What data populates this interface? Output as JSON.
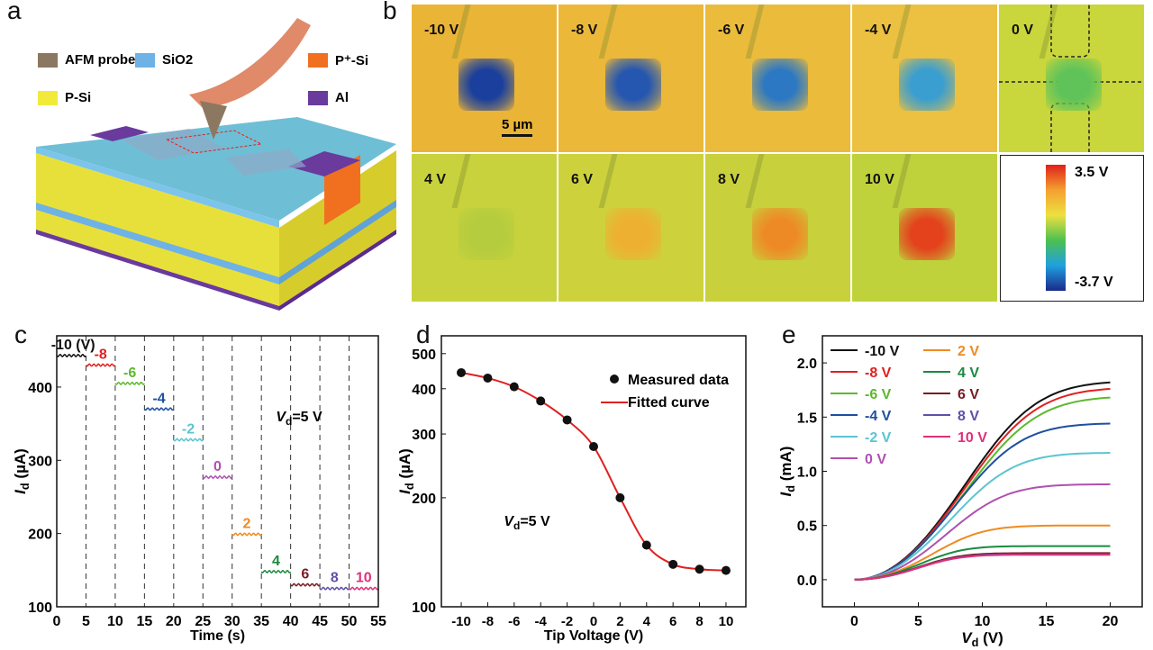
{
  "panel_a": {
    "label": "a",
    "legend": [
      {
        "text": "AFM probe",
        "color": "#8c7760"
      },
      {
        "text": "SiO2",
        "color": "#6fb2e6"
      },
      {
        "text": "P⁺-Si",
        "color": "#f07020"
      },
      {
        "text": "P-Si",
        "color": "#f1ea3a"
      },
      {
        "text": "Al",
        "color": "#6a3a9c"
      }
    ]
  },
  "panel_b": {
    "label": "b",
    "scale_bar": "5 µm",
    "tiles": [
      {
        "v": "-10 V",
        "bg": "#eab437",
        "sq": "#1a3f9c"
      },
      {
        "v": "-8 V",
        "bg": "#ebb83a",
        "sq": "#2556b0"
      },
      {
        "v": "-6 V",
        "bg": "#ebbb3c",
        "sq": "#2d78c2"
      },
      {
        "v": "-4 V",
        "bg": "#ecc040",
        "sq": "#3a9ed0"
      },
      {
        "v": "0 V",
        "bg": "#c9d63c",
        "sq": "#5fc35a"
      },
      {
        "v": "4 V",
        "bg": "#c8d23c",
        "sq": "#b4cc3e"
      },
      {
        "v": "6 V",
        "bg": "#cdd23c",
        "sq": "#eeb030"
      },
      {
        "v": "8 V",
        "bg": "#c8d03c",
        "sq": "#ee8a25"
      },
      {
        "v": "10 V",
        "bg": "#bfd23c",
        "sq": "#e4421c"
      }
    ],
    "colorbar": {
      "max": "3.5 V",
      "min": "-3.7 V"
    }
  },
  "chart_data": [
    {
      "panel": "c",
      "type": "line",
      "xlabel": "Time (s)",
      "ylabel": "Id (µA)",
      "ylabel_main": "I",
      "ylabel_sub": "d",
      "ylabel_unit": " (µA)",
      "xlim": [
        0,
        55
      ],
      "ylim": [
        100,
        470
      ],
      "xticks": [
        0,
        5,
        10,
        15,
        20,
        25,
        30,
        35,
        40,
        45,
        50,
        55
      ],
      "yticks": [
        100,
        200,
        300,
        400
      ],
      "annotation": {
        "v": "V",
        "sub": "d",
        "rest": "=5 V"
      },
      "segments": [
        {
          "label": "-10 (V)",
          "t": [
            0,
            5
          ],
          "value": 443,
          "color": "#111111"
        },
        {
          "label": "-8",
          "t": [
            5,
            10
          ],
          "value": 430,
          "color": "#e02020"
        },
        {
          "label": "-6",
          "t": [
            10,
            15
          ],
          "value": 405,
          "color": "#5cb82e"
        },
        {
          "label": "-4",
          "t": [
            15,
            20
          ],
          "value": 370,
          "color": "#1f4fa0"
        },
        {
          "label": "-2",
          "t": [
            20,
            25
          ],
          "value": 328,
          "color": "#5cc4d0"
        },
        {
          "label": "0",
          "t": [
            25,
            30
          ],
          "value": 277,
          "color": "#b050b0"
        },
        {
          "label": "2",
          "t": [
            30,
            35
          ],
          "value": 199,
          "color": "#f08a20"
        },
        {
          "label": "4",
          "t": [
            35,
            40
          ],
          "value": 148,
          "color": "#1a8a40"
        },
        {
          "label": "6",
          "t": [
            40,
            45
          ],
          "value": 130,
          "color": "#7a1a20"
        },
        {
          "label": "8",
          "t": [
            45,
            50
          ],
          "value": 125,
          "color": "#6050a8"
        },
        {
          "label": "10",
          "t": [
            50,
            55
          ],
          "value": 125,
          "color": "#e0307a"
        }
      ]
    },
    {
      "panel": "d",
      "type": "scatter",
      "yscale": "log",
      "xlabel": "Tip Voltage (V)",
      "ylabel_main": "I",
      "ylabel_sub": "d",
      "ylabel_unit": " (µA)",
      "xlim": [
        -11.5,
        11.5
      ],
      "ylim": [
        100,
        560
      ],
      "xticks": [
        -10,
        -8,
        -6,
        -4,
        -2,
        0,
        2,
        4,
        6,
        8,
        10
      ],
      "yticks": [
        100,
        200,
        300,
        400,
        500
      ],
      "legend": {
        "measured": "Measured data",
        "fitted": "Fitted curve"
      },
      "annotation": {
        "v": "V",
        "sub": "d",
        "rest": "=5 V"
      },
      "x": [
        -10,
        -8,
        -6,
        -4,
        -2,
        0,
        2,
        4,
        6,
        8,
        10
      ],
      "y": [
        443,
        428,
        405,
        370,
        328,
        277,
        200,
        148,
        131,
        127,
        126
      ],
      "fit_color": "#e02020"
    },
    {
      "panel": "e",
      "type": "line",
      "xlabel_main": "V",
      "xlabel_sub": "d",
      "xlabel_unit": " (V)",
      "ylabel_main": "I",
      "ylabel_sub": "d",
      "ylabel_unit": " (mA)",
      "xlim": [
        -2.5,
        22.5
      ],
      "ylim": [
        -0.25,
        2.25
      ],
      "xticks": [
        0,
        5,
        10,
        15,
        20
      ],
      "yticks": [
        "0.0",
        "0.5",
        "1.0",
        "1.5",
        "2.0"
      ],
      "series": [
        {
          "name": "-10 V",
          "i_at_20": 1.82,
          "knee_v": 12,
          "color": "#111111"
        },
        {
          "name": "-8 V",
          "i_at_20": 1.76,
          "knee_v": 12,
          "color": "#e02020"
        },
        {
          "name": "-6 V",
          "i_at_20": 1.68,
          "knee_v": 12,
          "color": "#5cb82e"
        },
        {
          "name": "-4 V",
          "i_at_20": 1.44,
          "knee_v": 11,
          "color": "#1f4fa0"
        },
        {
          "name": "-2 V",
          "i_at_20": 1.17,
          "knee_v": 10.5,
          "color": "#5cc4d0"
        },
        {
          "name": "0 V",
          "i_at_20": 0.88,
          "knee_v": 10,
          "color": "#b050b0"
        },
        {
          "name": "2 V",
          "i_at_20": 0.5,
          "knee_v": 8.5,
          "color": "#f08a20"
        },
        {
          "name": "4 V",
          "i_at_20": 0.31,
          "knee_v": 7.2,
          "color": "#1a8a40"
        },
        {
          "name": "6 V",
          "i_at_20": 0.245,
          "knee_v": 7,
          "color": "#7a1a20"
        },
        {
          "name": "8 V",
          "i_at_20": 0.235,
          "knee_v": 7,
          "color": "#6050a8"
        },
        {
          "name": "10 V",
          "i_at_20": 0.23,
          "knee_v": 7,
          "color": "#e0307a"
        }
      ]
    }
  ]
}
